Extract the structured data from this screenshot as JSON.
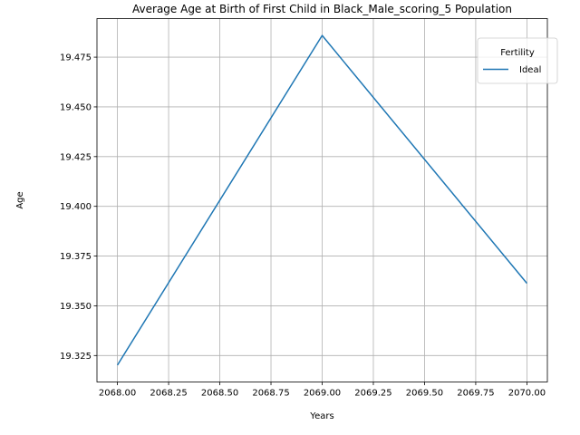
{
  "chart_data": {
    "type": "line",
    "title": "Average Age at Birth of First Child in Black_Male_scoring_5 Population",
    "xlabel": "Years",
    "ylabel": "Age",
    "xlim": [
      2067.9,
      2070.1
    ],
    "ylim": [
      19.3117,
      19.4944
    ],
    "x_ticks": [
      2068.0,
      2068.25,
      2068.5,
      2068.75,
      2069.0,
      2069.25,
      2069.5,
      2069.75,
      2070.0
    ],
    "x_tick_labels": [
      "2068.00",
      "2068.25",
      "2068.50",
      "2068.75",
      "2069.00",
      "2069.25",
      "2069.50",
      "2069.75",
      "2070.00"
    ],
    "y_ticks": [
      19.325,
      19.35,
      19.375,
      19.4,
      19.425,
      19.45,
      19.475
    ],
    "y_tick_labels": [
      "19.325",
      "19.350",
      "19.375",
      "19.400",
      "19.425",
      "19.450",
      "19.475"
    ],
    "grid": true,
    "legend": {
      "title": "Fertility",
      "placement": "top-right"
    },
    "series": [
      {
        "name": "Ideal",
        "color": "#1f77b4",
        "x": [
          2068.0,
          2069.0,
          2070.0
        ],
        "y": [
          19.3202,
          19.4859,
          19.3613
        ]
      }
    ]
  }
}
